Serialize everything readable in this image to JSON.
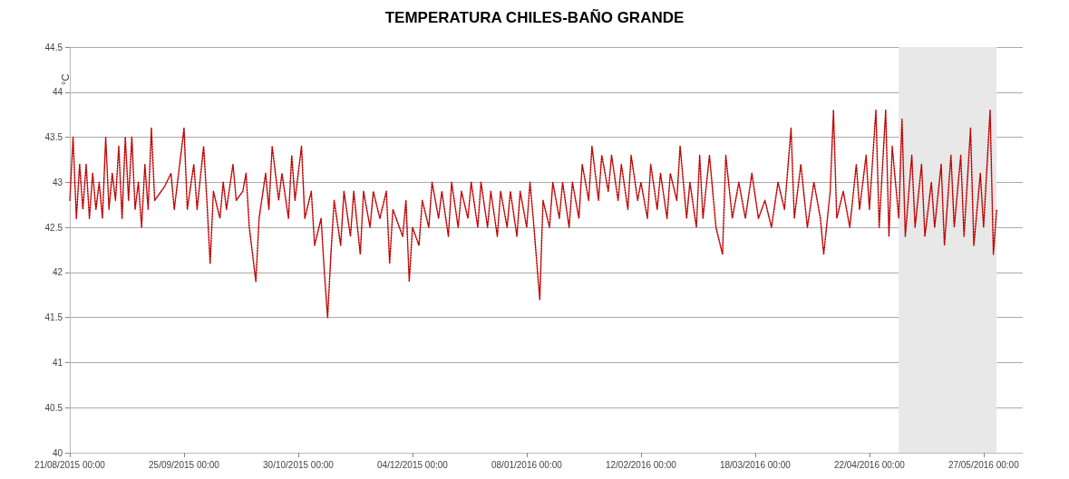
{
  "chart_data": {
    "type": "line",
    "title": "TEMPERATURA CHILES-BAÑO GRANDE",
    "ylabel": "°C",
    "xlim": [
      "2015-08-21",
      "2016-06-08"
    ],
    "xticks": [
      {
        "value": "2015-08-21",
        "label": "21/08/2015 00:00"
      },
      {
        "value": "2015-09-25",
        "label": "25/09/2015 00:00"
      },
      {
        "value": "2015-10-30",
        "label": "30/10/2015 00:00"
      },
      {
        "value": "2015-12-04",
        "label": "04/12/2015 00:00"
      },
      {
        "value": "2016-01-08",
        "label": "08/01/2016 00:00"
      },
      {
        "value": "2016-02-12",
        "label": "12/02/2016 00:00"
      },
      {
        "value": "2016-03-18",
        "label": "18/03/2016 00:00"
      },
      {
        "value": "2016-04-22",
        "label": "22/04/2016 00:00"
      },
      {
        "value": "2016-05-27",
        "label": "27/05/2016 00:00"
      }
    ],
    "ylim": [
      40,
      44.5
    ],
    "yticks": [
      40,
      40.5,
      41,
      41.5,
      42,
      42.5,
      43,
      43.5,
      44,
      44.5
    ],
    "grid": "y",
    "marker": "none",
    "line_style": "dotted",
    "bands": [
      {
        "axis": "x",
        "from": "2016-05-01",
        "to": "2016-05-31",
        "color": "#e8e8e8"
      }
    ],
    "series": [
      {
        "color": "#c00000",
        "x": [
          "2015-08-21",
          "2015-08-22",
          "2015-08-23",
          "2015-08-24",
          "2015-08-25",
          "2015-08-26",
          "2015-08-27",
          "2015-08-28",
          "2015-08-29",
          "2015-08-30",
          "2015-08-31",
          "2015-09-01",
          "2015-09-02",
          "2015-09-03",
          "2015-09-04",
          "2015-09-05",
          "2015-09-06",
          "2015-09-07",
          "2015-09-08",
          "2015-09-09",
          "2015-09-10",
          "2015-09-11",
          "2015-09-12",
          "2015-09-13",
          "2015-09-14",
          "2015-09-15",
          "2015-09-16",
          "2015-09-19",
          "2015-09-21",
          "2015-09-22",
          "2015-09-23",
          "2015-09-25",
          "2015-09-26",
          "2015-09-28",
          "2015-09-29",
          "2015-10-01",
          "2015-10-02",
          "2015-10-03",
          "2015-10-04",
          "2015-10-06",
          "2015-10-07",
          "2015-10-08",
          "2015-10-10",
          "2015-10-11",
          "2015-10-13",
          "2015-10-14",
          "2015-10-15",
          "2015-10-17",
          "2015-10-18",
          "2015-10-20",
          "2015-10-21",
          "2015-10-22",
          "2015-10-24",
          "2015-10-25",
          "2015-10-27",
          "2015-10-28",
          "2015-10-29",
          "2015-10-31",
          "2015-11-01",
          "2015-11-03",
          "2015-11-04",
          "2015-11-06",
          "2015-11-07",
          "2015-11-08",
          "2015-11-09",
          "2015-11-10",
          "2015-11-12",
          "2015-11-13",
          "2015-11-15",
          "2015-11-16",
          "2015-11-18",
          "2015-11-19",
          "2015-11-21",
          "2015-11-22",
          "2015-11-24",
          "2015-11-26",
          "2015-11-27",
          "2015-11-28",
          "2015-12-01",
          "2015-12-02",
          "2015-12-03",
          "2015-12-04",
          "2015-12-06",
          "2015-12-07",
          "2015-12-09",
          "2015-12-10",
          "2015-12-12",
          "2015-12-13",
          "2015-12-15",
          "2015-12-16",
          "2015-12-18",
          "2015-12-19",
          "2015-12-21",
          "2015-12-22",
          "2015-12-24",
          "2015-12-25",
          "2015-12-27",
          "2015-12-28",
          "2015-12-30",
          "2015-12-31",
          "2016-01-02",
          "2016-01-03",
          "2016-01-05",
          "2016-01-06",
          "2016-01-08",
          "2016-01-09",
          "2016-01-10",
          "2016-01-12",
          "2016-01-13",
          "2016-01-15",
          "2016-01-16",
          "2016-01-18",
          "2016-01-19",
          "2016-01-21",
          "2016-01-22",
          "2016-01-24",
          "2016-01-25",
          "2016-01-27",
          "2016-01-28",
          "2016-01-30",
          "2016-01-31",
          "2016-02-02",
          "2016-02-03",
          "2016-02-05",
          "2016-02-06",
          "2016-02-08",
          "2016-02-09",
          "2016-02-11",
          "2016-02-12",
          "2016-02-14",
          "2016-02-15",
          "2016-02-17",
          "2016-02-18",
          "2016-02-20",
          "2016-02-21",
          "2016-02-23",
          "2016-02-24",
          "2016-02-26",
          "2016-02-27",
          "2016-02-29",
          "2016-03-01",
          "2016-03-02",
          "2016-03-04",
          "2016-03-06",
          "2016-03-08",
          "2016-03-09",
          "2016-03-11",
          "2016-03-13",
          "2016-03-15",
          "2016-03-17",
          "2016-03-19",
          "2016-03-21",
          "2016-03-23",
          "2016-03-25",
          "2016-03-27",
          "2016-03-29",
          "2016-03-30",
          "2016-04-01",
          "2016-04-03",
          "2016-04-05",
          "2016-04-07",
          "2016-04-08",
          "2016-04-10",
          "2016-04-11",
          "2016-04-12",
          "2016-04-14",
          "2016-04-16",
          "2016-04-18",
          "2016-04-19",
          "2016-04-21",
          "2016-04-22",
          "2016-04-24",
          "2016-04-25",
          "2016-04-27",
          "2016-04-28",
          "2016-04-29",
          "2016-05-01",
          "2016-05-02",
          "2016-05-03",
          "2016-05-05",
          "2016-05-06",
          "2016-05-08",
          "2016-05-09",
          "2016-05-11",
          "2016-05-12",
          "2016-05-14",
          "2016-05-15",
          "2016-05-17",
          "2016-05-18",
          "2016-05-20",
          "2016-05-21",
          "2016-05-23",
          "2016-05-24",
          "2016-05-26",
          "2016-05-27",
          "2016-05-29",
          "2016-05-30",
          "2016-05-31"
        ],
        "values": [
          42.8,
          43.5,
          42.6,
          43.2,
          42.7,
          43.2,
          42.6,
          43.1,
          42.7,
          43.0,
          42.6,
          43.5,
          42.7,
          43.1,
          42.8,
          43.4,
          42.6,
          43.5,
          42.8,
          43.5,
          42.7,
          43.0,
          42.5,
          43.2,
          42.7,
          43.6,
          42.8,
          42.95,
          43.1,
          42.7,
          43.0,
          43.6,
          42.7,
          43.2,
          42.7,
          43.4,
          42.8,
          42.1,
          42.9,
          42.6,
          43.0,
          42.7,
          43.2,
          42.8,
          42.9,
          43.1,
          42.5,
          41.9,
          42.6,
          43.1,
          42.7,
          43.4,
          42.8,
          43.1,
          42.6,
          43.3,
          42.8,
          43.4,
          42.6,
          42.9,
          42.3,
          42.6,
          42.0,
          41.5,
          42.2,
          42.8,
          42.3,
          42.9,
          42.4,
          42.9,
          42.2,
          42.9,
          42.5,
          42.9,
          42.6,
          42.9,
          42.1,
          42.7,
          42.4,
          42.8,
          41.9,
          42.5,
          42.3,
          42.8,
          42.5,
          43.0,
          42.6,
          42.9,
          42.4,
          43.0,
          42.5,
          42.9,
          42.6,
          43.0,
          42.5,
          43.0,
          42.5,
          42.9,
          42.4,
          42.9,
          42.5,
          42.9,
          42.4,
          42.9,
          42.5,
          43.0,
          42.6,
          41.7,
          42.8,
          42.5,
          43.0,
          42.6,
          43.0,
          42.5,
          43.0,
          42.6,
          43.2,
          42.8,
          43.4,
          42.8,
          43.3,
          42.9,
          43.3,
          42.8,
          43.2,
          42.7,
          43.3,
          42.8,
          43.0,
          42.6,
          43.2,
          42.7,
          43.1,
          42.6,
          43.1,
          42.8,
          43.4,
          42.6,
          43.0,
          42.5,
          43.3,
          42.6,
          43.3,
          42.5,
          42.2,
          43.3,
          42.6,
          43.0,
          42.6,
          43.1,
          42.6,
          42.8,
          42.5,
          43.0,
          42.7,
          43.6,
          42.6,
          43.2,
          42.5,
          43.0,
          42.6,
          42.2,
          42.9,
          43.8,
          42.6,
          42.9,
          42.5,
          43.2,
          42.7,
          43.3,
          42.7,
          43.8,
          42.5,
          43.8,
          42.4,
          43.4,
          42.6,
          43.7,
          42.4,
          43.3,
          42.5,
          43.2,
          42.4,
          43.0,
          42.5,
          43.2,
          42.3,
          43.3,
          42.5,
          43.3,
          42.4,
          43.6,
          42.3,
          43.1,
          42.5,
          43.8,
          42.2,
          42.7
        ]
      }
    ]
  }
}
